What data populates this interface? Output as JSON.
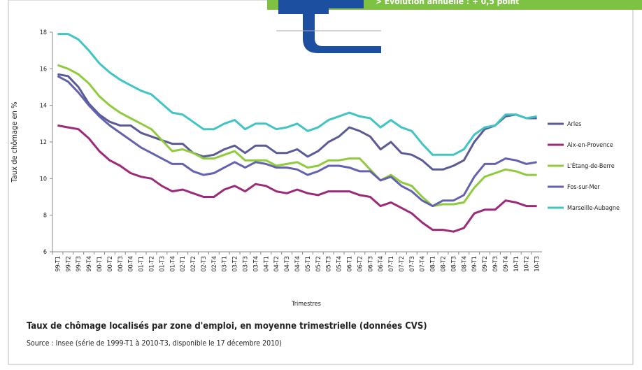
{
  "banner": "> Évolution annuelle : + 0,5 point",
  "chart_data": {
    "type": "line",
    "y_label": "Taux de chômage en %",
    "x_label": "Trimestres",
    "title": "Taux de chômage localisés par zone d'emploi, en moyenne trimestrielle (données CVS)",
    "source": "Source : Insee (série de 1999-T1 à 2010-T3, disponible le 17 décembre 2010)",
    "categories": [
      "99-T1",
      "99-T2",
      "99-T3",
      "99-T4",
      "00-T1",
      "00-T2",
      "00-T3",
      "00-T4",
      "01-T1",
      "01-T2",
      "01-T3",
      "01-T4",
      "02-T1",
      "02-T2",
      "02-T3",
      "02-T4",
      "03-T1",
      "03-T2",
      "03-T3",
      "03-T4",
      "04-T1",
      "04-T2",
      "04-T3",
      "04-T4",
      "05-T1",
      "05-T2",
      "05-T3",
      "05-T4",
      "06-T1",
      "06-T2",
      "06-T3",
      "06-T4",
      "07-T1",
      "07-T2",
      "07-T3",
      "07-T4",
      "08-T1",
      "08-T2",
      "08-T3",
      "08-T4",
      "09-T1",
      "09-T2",
      "09-T3",
      "09-T4",
      "10-T1",
      "10-T2",
      "10-T3"
    ],
    "ylim": [
      6,
      18
    ],
    "yticks": [
      6,
      8,
      10,
      12,
      14,
      16,
      18
    ],
    "grid": false,
    "series": [
      {
        "name": "Arles",
        "color": "#5a5a96",
        "values": [
          15.7,
          15.6,
          15.0,
          14.1,
          13.5,
          13.1,
          12.9,
          12.9,
          12.5,
          12.3,
          12.1,
          11.9,
          11.9,
          11.4,
          11.2,
          11.3,
          11.6,
          11.8,
          11.4,
          11.8,
          11.8,
          11.4,
          11.4,
          11.6,
          11.2,
          11.5,
          12.0,
          12.3,
          12.8,
          12.6,
          12.3,
          11.6,
          12.0,
          11.4,
          11.3,
          11.0,
          10.5,
          10.5,
          10.7,
          11.0,
          12.0,
          12.7,
          12.9,
          13.4,
          13.5,
          13.3,
          13.3
        ]
      },
      {
        "name": "Aix-en-Provence",
        "color": "#9c2a78",
        "values": [
          12.9,
          12.8,
          12.7,
          12.2,
          11.5,
          11.0,
          10.7,
          10.3,
          10.1,
          10.0,
          9.6,
          9.3,
          9.4,
          9.2,
          9.0,
          9.0,
          9.4,
          9.6,
          9.3,
          9.7,
          9.6,
          9.3,
          9.2,
          9.4,
          9.2,
          9.1,
          9.3,
          9.3,
          9.3,
          9.1,
          9.0,
          8.5,
          8.7,
          8.4,
          8.1,
          7.6,
          7.2,
          7.2,
          7.1,
          7.3,
          8.1,
          8.3,
          8.3,
          8.8,
          8.7,
          8.5,
          8.5
        ]
      },
      {
        "name": "L'Étang-de-Berre",
        "color": "#8fcb3c",
        "values": [
          16.2,
          16.0,
          15.7,
          15.2,
          14.5,
          14.0,
          13.6,
          13.3,
          13.0,
          12.7,
          12.1,
          11.5,
          11.6,
          11.4,
          11.1,
          11.1,
          11.3,
          11.5,
          11.0,
          11.0,
          11.0,
          10.7,
          10.8,
          10.9,
          10.6,
          10.7,
          11.0,
          11.0,
          11.1,
          11.1,
          10.5,
          9.9,
          10.2,
          9.8,
          9.6,
          9.0,
          8.5,
          8.6,
          8.6,
          8.7,
          9.5,
          10.1,
          10.3,
          10.5,
          10.4,
          10.2,
          10.2
        ]
      },
      {
        "name": "Fos-sur-Mer",
        "color": "#6262b0",
        "values": [
          15.6,
          15.3,
          14.7,
          14.0,
          13.4,
          12.9,
          12.5,
          12.1,
          11.7,
          11.4,
          11.1,
          10.8,
          10.8,
          10.4,
          10.2,
          10.3,
          10.6,
          10.9,
          10.6,
          10.9,
          10.8,
          10.6,
          10.6,
          10.5,
          10.2,
          10.4,
          10.7,
          10.7,
          10.6,
          10.4,
          10.4,
          9.9,
          10.1,
          9.6,
          9.3,
          8.8,
          8.5,
          8.8,
          8.8,
          9.1,
          10.1,
          10.8,
          10.8,
          11.1,
          11.0,
          10.8,
          10.9
        ]
      },
      {
        "name": "Marseille-Aubagne",
        "color": "#40c4c4",
        "values": [
          17.9,
          17.9,
          17.6,
          17.0,
          16.3,
          15.8,
          15.4,
          15.1,
          14.8,
          14.6,
          14.1,
          13.6,
          13.5,
          13.1,
          12.7,
          12.7,
          13.0,
          13.2,
          12.7,
          13.0,
          13.0,
          12.7,
          12.8,
          13.0,
          12.6,
          12.8,
          13.2,
          13.4,
          13.6,
          13.4,
          13.3,
          12.8,
          13.2,
          12.8,
          12.6,
          11.9,
          11.3,
          11.3,
          11.3,
          11.6,
          12.4,
          12.8,
          12.9,
          13.5,
          13.5,
          13.3,
          13.4
        ]
      }
    ]
  }
}
